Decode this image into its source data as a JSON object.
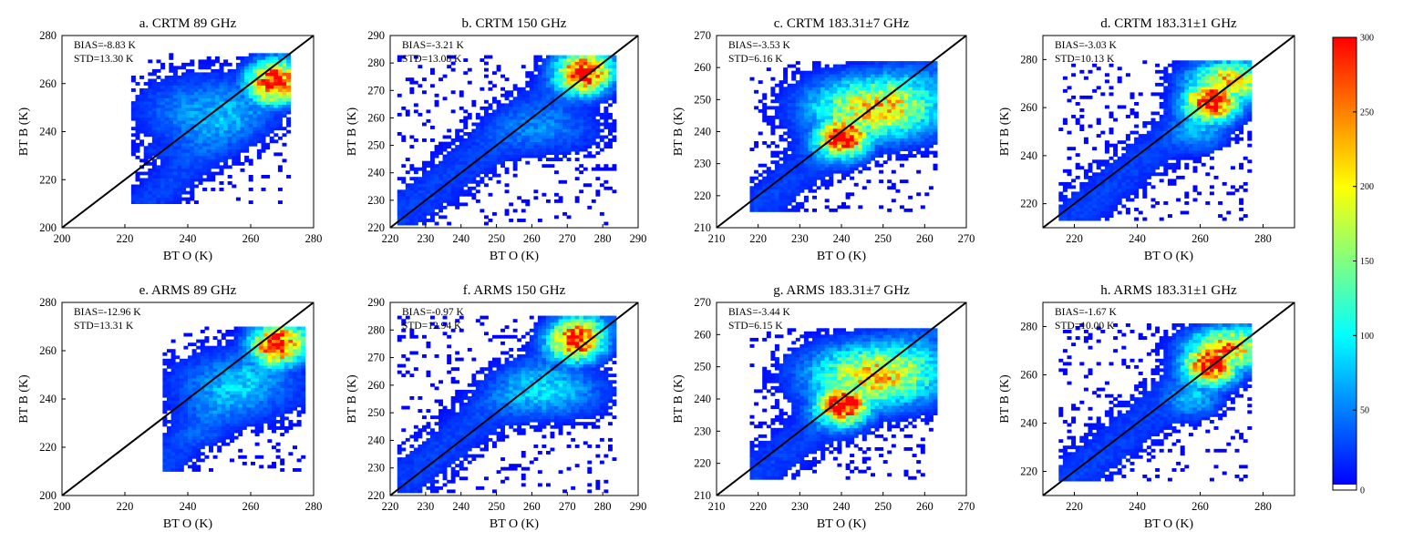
{
  "chart_data": [
    {
      "panel": "a",
      "type": "heatmap",
      "title": "a. CRTM 89 GHz",
      "xlabel": "BT O (K)",
      "ylabel": "BT B (K)",
      "xlim": [
        200,
        280
      ],
      "ylim": [
        200,
        280
      ],
      "xticks": [
        "200",
        "220",
        "240",
        "260",
        "280"
      ],
      "yticks": [
        "200",
        "220",
        "240",
        "260",
        "280"
      ],
      "bias": "BIAS=-8.83 K",
      "std": "STD=13.30 K",
      "density": {
        "peak": [
          267,
          260
        ],
        "core": [
          [
            245,
            248,
            0.5,
            0.35,
            60
          ],
          [
            230,
            232,
            0.25,
            0.1,
            18
          ]
        ],
        "spread": [
          [
            222,
            210
          ],
          [
            272,
            272
          ]
        ]
      }
    },
    {
      "panel": "b",
      "type": "heatmap",
      "title": "b. CRTM 150 GHz",
      "xlabel": "BT O (K)",
      "ylabel": "BT B (K)",
      "xlim": [
        220,
        290
      ],
      "ylim": [
        220,
        290
      ],
      "xticks": [
        "220",
        "230",
        "240",
        "250",
        "260",
        "270",
        "280",
        "290"
      ],
      "yticks": [
        "220",
        "230",
        "240",
        "250",
        "260",
        "270",
        "280",
        "290"
      ],
      "bias": "BIAS=-3.21 K",
      "std": "STD=13.08 K",
      "density": {
        "peak": [
          274,
          276
        ],
        "core": [
          [
            265,
            255,
            0.4,
            0.25,
            40
          ]
        ],
        "spread": [
          [
            222,
            221
          ],
          [
            283,
            282
          ]
        ]
      }
    },
    {
      "panel": "c",
      "type": "heatmap",
      "title": "c. CRTM 183.31±7 GHz",
      "xlabel": "BT O (K)",
      "ylabel": "BT B (K)",
      "xlim": [
        210,
        270
      ],
      "ylim": [
        210,
        270
      ],
      "xticks": [
        "210",
        "220",
        "230",
        "240",
        "250",
        "260",
        "270"
      ],
      "yticks": [
        "210",
        "220",
        "230",
        "240",
        "250",
        "260",
        "270"
      ],
      "bias": "BIAS=-3.53 K",
      "std": "STD=6.16 K",
      "density": {
        "peak": [
          240,
          238
        ],
        "core": [
          [
            248,
            247,
            0.5,
            0.3,
            200
          ]
        ],
        "spread": [
          [
            218,
            215
          ],
          [
            262,
            261
          ]
        ]
      }
    },
    {
      "panel": "d",
      "type": "heatmap",
      "title": "d. CRTM 183.31±1 GHz",
      "xlabel": "BT O (K)",
      "ylabel": "BT B (K)",
      "xlim": [
        210,
        290
      ],
      "ylim": [
        210,
        290
      ],
      "xticks": [
        "220",
        "240",
        "260",
        "280"
      ],
      "yticks": [
        "220",
        "240",
        "260",
        "280"
      ],
      "bias": "BIAS=-3.03 K",
      "std": "STD=10.13 K",
      "density": {
        "peak": [
          263,
          262
        ],
        "core": [
          [
            268,
            270,
            0.3,
            0.2,
            200
          ],
          [
            260,
            250,
            0.2,
            0.2,
            60
          ]
        ],
        "spread": [
          [
            215,
            213
          ],
          [
            275,
            279
          ]
        ]
      }
    },
    {
      "panel": "e",
      "type": "heatmap",
      "title": "e. ARMS 89 GHz",
      "xlabel": "BT O (K)",
      "ylabel": "BT B (K)",
      "xlim": [
        200,
        280
      ],
      "ylim": [
        200,
        280
      ],
      "xticks": [
        "200",
        "220",
        "240",
        "260",
        "280"
      ],
      "yticks": [
        "200",
        "220",
        "240",
        "260",
        "280"
      ],
      "bias": "BIAS=-12.96 K",
      "std": "STD=13.31 K",
      "density": {
        "peak": [
          268,
          262
        ],
        "core": [
          [
            255,
            245,
            0.5,
            0.35,
            60
          ],
          [
            245,
            225,
            0.25,
            0.1,
            18
          ]
        ],
        "spread": [
          [
            232,
            210
          ],
          [
            276,
            270
          ]
        ]
      }
    },
    {
      "panel": "f",
      "type": "heatmap",
      "title": "f. ARMS 150 GHz",
      "xlabel": "BT O (K)",
      "ylabel": "BT B (K)",
      "xlim": [
        220,
        290
      ],
      "ylim": [
        220,
        290
      ],
      "xticks": [
        "220",
        "230",
        "240",
        "250",
        "260",
        "270",
        "280",
        "290"
      ],
      "yticks": [
        "220",
        "230",
        "240",
        "250",
        "260",
        "270",
        "280",
        "290"
      ],
      "bias": "BIAS=-0.97 K",
      "std": "STD=12.94 K",
      "density": {
        "peak": [
          272,
          276
        ],
        "core": [
          [
            265,
            257,
            0.4,
            0.25,
            80
          ]
        ],
        "spread": [
          [
            222,
            221
          ],
          [
            283,
            285
          ]
        ]
      }
    },
    {
      "panel": "g",
      "type": "heatmap",
      "title": "g. ARMS 183.31±7 GHz",
      "xlabel": "BT O (K)",
      "ylabel": "BT B (K)",
      "xlim": [
        210,
        270
      ],
      "ylim": [
        210,
        270
      ],
      "xticks": [
        "210",
        "220",
        "230",
        "240",
        "250",
        "260",
        "270"
      ],
      "yticks": [
        "210",
        "220",
        "230",
        "240",
        "250",
        "260",
        "270"
      ],
      "bias": "BIAS=-3.44 K",
      "std": "STD=6.15 K",
      "density": {
        "peak": [
          240,
          238
        ],
        "core": [
          [
            248,
            247,
            0.5,
            0.3,
            200
          ]
        ],
        "spread": [
          [
            218,
            215
          ],
          [
            262,
            261
          ]
        ]
      }
    },
    {
      "panel": "h",
      "type": "heatmap",
      "title": "h. ARMS 183.31±1 GHz",
      "xlabel": "BT O (K)",
      "ylabel": "BT B (K)",
      "xlim": [
        210,
        290
      ],
      "ylim": [
        210,
        290
      ],
      "xticks": [
        "220",
        "240",
        "260",
        "280"
      ],
      "yticks": [
        "220",
        "240",
        "260",
        "280"
      ],
      "bias": "BIAS=-1.67 K",
      "std": "STD=10.00 K",
      "density": {
        "peak": [
          263,
          264
        ],
        "core": [
          [
            268,
            270,
            0.3,
            0.2,
            220
          ],
          [
            258,
            250,
            0.2,
            0.2,
            60
          ]
        ],
        "spread": [
          [
            215,
            216
          ],
          [
            275,
            280
          ]
        ]
      }
    }
  ],
  "colorbar": {
    "min": 0,
    "max": 300,
    "ticks": [
      "0",
      "50",
      "100",
      "150",
      "200",
      "250",
      "300"
    ],
    "colormap": [
      "#0000ff",
      "#0080ff",
      "#00ffff",
      "#80ff80",
      "#ffff00",
      "#ff8000",
      "#ff0000"
    ],
    "zero_color": "#ffffff"
  },
  "colors": {
    "one_to_one_line": "#000000"
  }
}
